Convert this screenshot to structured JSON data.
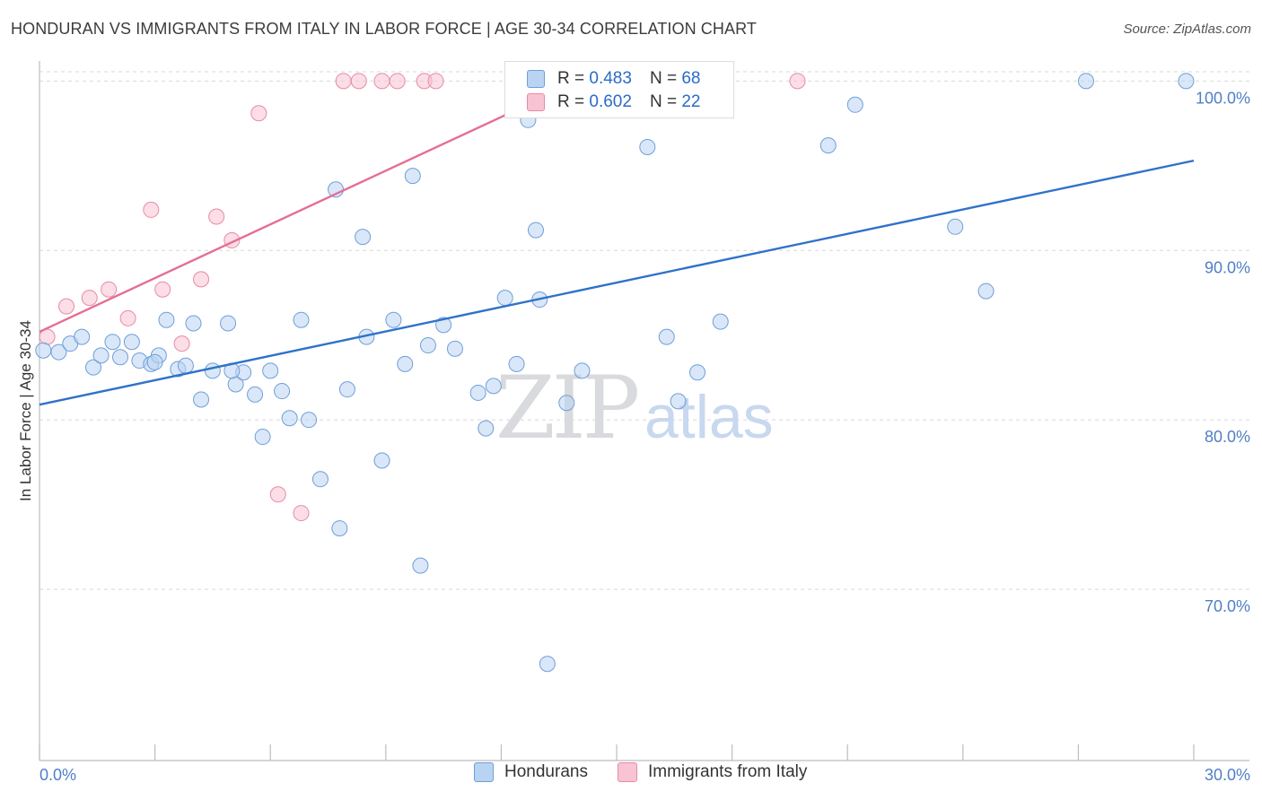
{
  "title": "HONDURAN VS IMMIGRANTS FROM ITALY IN LABOR FORCE | AGE 30-34 CORRELATION CHART",
  "source": "Source: ZipAtlas.com",
  "watermark": {
    "zip": "ZIP",
    "atlas": "atlas"
  },
  "legend": {
    "series1": {
      "r_label": "R =",
      "r_value": "0.483",
      "n_label": "N =",
      "n_value": "68"
    },
    "series2": {
      "r_label": "R =",
      "r_value": "0.602",
      "n_label": "N =",
      "n_value": "22"
    }
  },
  "bottom_legend": {
    "series1": "Hondurans",
    "series2": "Immigrants from Italy"
  },
  "colors": {
    "hondurans_fill": "#b9d3f3",
    "hondurans_stroke": "#6f9fd8",
    "hondurans_line": "#2f72c9",
    "italy_fill": "#f8c3d2",
    "italy_stroke": "#e88aa6",
    "italy_line": "#e46e94",
    "grid": "#d8d8d8",
    "tick_text": "#4f7fc6"
  },
  "chart_data": {
    "type": "scatter",
    "title": "HONDURAN VS IMMIGRANTS FROM ITALY IN LABOR FORCE | AGE 30-34 CORRELATION CHART",
    "xlabel": "",
    "ylabel": "In Labor Force | Age 30-34",
    "xlim": [
      0,
      30
    ],
    "ylim": [
      60,
      101.5
    ],
    "x_tick_labels": [
      "0.0%",
      "30.0%"
    ],
    "y_ticks": [
      70,
      80,
      90,
      100
    ],
    "y_tick_labels": [
      "70.0%",
      "80.0%",
      "90.0%",
      "100.0%"
    ],
    "grid": true,
    "series": [
      {
        "name": "Hondurans",
        "r": 0.483,
        "n": 68,
        "trend": {
          "x": [
            0,
            30
          ],
          "y": [
            80.9,
            95.3
          ]
        },
        "points": [
          [
            0.1,
            84.1
          ],
          [
            0.5,
            84.0
          ],
          [
            0.8,
            84.5
          ],
          [
            1.1,
            84.9
          ],
          [
            1.4,
            83.1
          ],
          [
            1.6,
            83.8
          ],
          [
            1.9,
            84.6
          ],
          [
            2.1,
            83.7
          ],
          [
            2.4,
            84.6
          ],
          [
            2.6,
            83.5
          ],
          [
            2.9,
            83.3
          ],
          [
            3.1,
            83.8
          ],
          [
            3.3,
            85.9
          ],
          [
            3.6,
            83.0
          ],
          [
            3.8,
            83.2
          ],
          [
            4.0,
            85.7
          ],
          [
            4.2,
            81.2
          ],
          [
            4.5,
            82.9
          ],
          [
            4.9,
            85.7
          ],
          [
            5.1,
            82.1
          ],
          [
            5.3,
            82.8
          ],
          [
            5.6,
            81.5
          ],
          [
            5.8,
            79.0
          ],
          [
            6.0,
            82.9
          ],
          [
            6.3,
            81.7
          ],
          [
            6.5,
            80.1
          ],
          [
            6.8,
            85.9
          ],
          [
            7.0,
            80.0
          ],
          [
            7.3,
            76.5
          ],
          [
            7.7,
            93.6
          ],
          [
            7.8,
            73.6
          ],
          [
            8.0,
            81.8
          ],
          [
            8.4,
            90.8
          ],
          [
            8.5,
            84.9
          ],
          [
            8.9,
            77.6
          ],
          [
            9.2,
            85.9
          ],
          [
            9.5,
            83.3
          ],
          [
            9.7,
            94.4
          ],
          [
            9.9,
            71.4
          ],
          [
            10.1,
            84.4
          ],
          [
            10.5,
            85.6
          ],
          [
            10.8,
            84.2
          ],
          [
            11.4,
            81.6
          ],
          [
            11.6,
            79.5
          ],
          [
            11.8,
            82.0
          ],
          [
            12.1,
            87.2
          ],
          [
            12.4,
            83.3
          ],
          [
            12.7,
            97.7
          ],
          [
            12.9,
            91.2
          ],
          [
            13.0,
            87.1
          ],
          [
            13.2,
            65.6
          ],
          [
            13.7,
            81.0
          ],
          [
            14.1,
            82.9
          ],
          [
            14.9,
            100.0
          ],
          [
            15.6,
            99.1
          ],
          [
            15.8,
            96.1
          ],
          [
            16.3,
            84.9
          ],
          [
            16.6,
            81.1
          ],
          [
            17.1,
            82.8
          ],
          [
            17.7,
            85.8
          ],
          [
            20.5,
            96.2
          ],
          [
            21.2,
            98.6
          ],
          [
            23.8,
            91.4
          ],
          [
            24.6,
            87.6
          ],
          [
            27.2,
            100.0
          ],
          [
            29.8,
            100.0
          ],
          [
            3.0,
            83.4
          ],
          [
            5.0,
            82.9
          ]
        ]
      },
      {
        "name": "Immigrants from Italy",
        "r": 0.602,
        "n": 22,
        "trend": {
          "x": [
            0,
            14.2
          ],
          "y": [
            85.2,
            100.2
          ]
        },
        "points": [
          [
            0.2,
            84.9
          ],
          [
            0.7,
            86.7
          ],
          [
            1.3,
            87.2
          ],
          [
            1.8,
            87.7
          ],
          [
            2.3,
            86.0
          ],
          [
            2.9,
            92.4
          ],
          [
            3.2,
            87.7
          ],
          [
            3.7,
            84.5
          ],
          [
            4.2,
            88.3
          ],
          [
            4.6,
            92.0
          ],
          [
            5.0,
            90.6
          ],
          [
            5.7,
            98.1
          ],
          [
            6.2,
            75.6
          ],
          [
            6.8,
            74.5
          ],
          [
            7.9,
            100.0
          ],
          [
            8.3,
            100.0
          ],
          [
            8.9,
            100.0
          ],
          [
            9.3,
            100.0
          ],
          [
            10.0,
            100.0
          ],
          [
            10.3,
            100.0
          ],
          [
            13.6,
            100.0
          ],
          [
            19.7,
            100.0
          ]
        ]
      }
    ]
  }
}
